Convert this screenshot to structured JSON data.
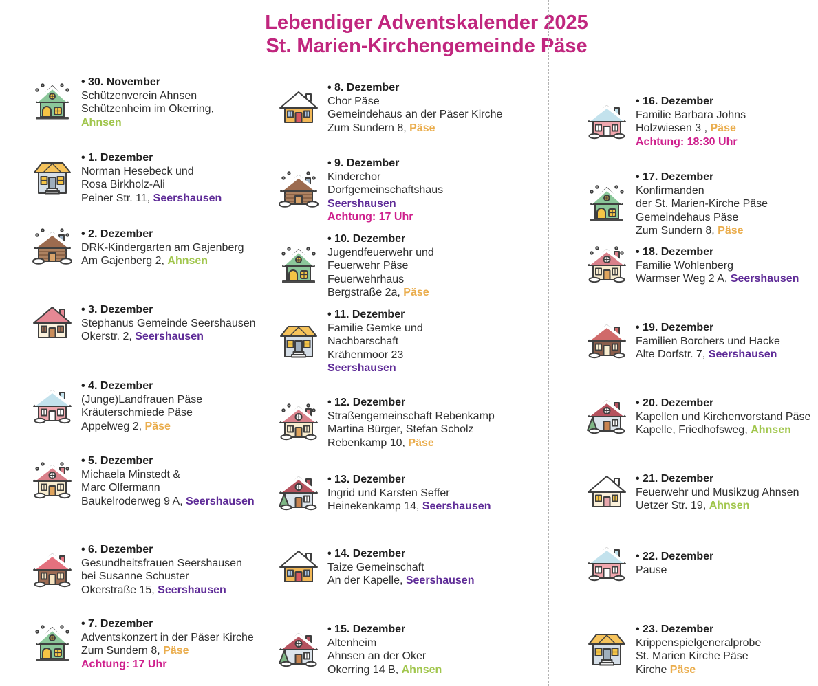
{
  "title": {
    "line1": "Lebendiger Adventskalender 2025",
    "line2": "St. Marien-Kirchengemeinde Päse"
  },
  "bullet": "•",
  "colors": {
    "title": "#C0267E",
    "ahnsen": "#A1C64D",
    "seershausen": "#5E2B97",
    "paese": "#EAAD4D",
    "achtung": "#CE1F8C",
    "text": "#2b2b2b"
  },
  "icon_types": {
    "green_gable": {
      "name": "green-snow-house-icon",
      "variant": "gable",
      "roof": "#8BC79A",
      "body": "#8BC79A",
      "door": "#F5C445",
      "win": "#F5C445",
      "snow": true,
      "flakes": true
    },
    "two_story": {
      "name": "two-story-house-icon",
      "variant": "wide",
      "roof": "#F6C35B",
      "body": "#D5DEE7",
      "door": "#9FAEBC",
      "win": "#F5C445"
    },
    "log_cabin": {
      "name": "log-cabin-icon",
      "variant": "cabin",
      "roof": "#9C6B4F",
      "body": "#AD8261",
      "door": "#D8A36A",
      "snow": true,
      "flakes": true
    },
    "cream_red": {
      "name": "cream-red-roof-house-icon",
      "variant": "side",
      "roof": "#E58894",
      "body": "#FBF1DB",
      "door": "#C98C59",
      "win": "#9C6B4F"
    },
    "pink_blue": {
      "name": "pink-blue-roof-house-icon",
      "variant": "side",
      "roof": "#C3E2ED",
      "body": "#F0A7AE",
      "door": "#FFFFFF",
      "win": "#FFFFFF",
      "snow": true
    },
    "cream_round": {
      "name": "cream-house-round-window-icon",
      "variant": "side",
      "roof": "#D9808A",
      "body": "#F8ECCF",
      "door": "#E0A45C",
      "win": "#F8ECCF",
      "snow": true,
      "flakes": true,
      "roundWin": true
    },
    "brown_pink": {
      "name": "brown-house-pink-roof-icon",
      "variant": "side",
      "roof": "#E4717E",
      "body": "#9C6B53",
      "door": "#F6E3C0",
      "win": "#F6E3C0",
      "snow": true
    },
    "orange_snow": {
      "name": "orange-house-icon",
      "variant": "side",
      "roof": "#FFFFFF",
      "body": "#F2B857",
      "door": "#D95660",
      "win": "#A8C6E8"
    },
    "gray_tree": {
      "name": "gray-house-tree-icon",
      "variant": "side",
      "roof": "#B5525E",
      "body": "#DCE4EB",
      "door": "#C8834F",
      "win": "#FFFFFF",
      "tree": true,
      "snow": true,
      "roundWin": true
    },
    "brown_red": {
      "name": "brown-house-red-roof-icon",
      "variant": "side",
      "roof": "#D06A6A",
      "body": "#8B5E4B",
      "door": "#F8ECCF",
      "win": "#F8ECCF",
      "snow": true
    },
    "cream_snow": {
      "name": "cream-snow-roof-house-icon",
      "variant": "side",
      "roof": "#FFFFFF",
      "body": "#FBF0D9",
      "door": "#E7A7AD",
      "win": "#F5C445"
    }
  },
  "columns": [
    {
      "entries": [
        {
          "date": "30. November",
          "icon": "green_gable",
          "lines": [
            [
              {
                "t": "Schützenverein Ahnsen"
              }
            ],
            [
              {
                "t": "Schützenheim im Okerring,"
              }
            ],
            [
              {
                "t": "Ahnsen",
                "s": "ahnsen"
              }
            ]
          ]
        },
        {
          "date": "1. Dezember",
          "icon": "two_story",
          "lines": [
            [
              {
                "t": "Norman Hesebeck und"
              }
            ],
            [
              {
                "t": "Rosa Birkholz-Ali"
              }
            ],
            [
              {
                "t": "Peiner Str. 11, "
              },
              {
                "t": "Seershausen",
                "s": "seershausen"
              }
            ]
          ]
        },
        {
          "date": "2. Dezember",
          "icon": "log_cabin",
          "lines": [
            [
              {
                "t": "DRK-Kindergarten am Gajenberg"
              }
            ],
            [
              {
                "t": "Am Gajenberg 2, "
              },
              {
                "t": "Ahnsen",
                "s": "ahnsen"
              }
            ]
          ]
        },
        {
          "date": "3. Dezember",
          "icon": "cream_red",
          "lines": [
            [
              {
                "t": "Stephanus Gemeinde Seershausen"
              }
            ],
            [
              {
                "t": "Okerstr. 2, "
              },
              {
                "t": "Seershausen",
                "s": "seershausen"
              }
            ]
          ]
        },
        {
          "date": "4. Dezember",
          "icon": "pink_blue",
          "lines": [
            [
              {
                "t": "(Junge)Landfrauen Päse"
              }
            ],
            [
              {
                "t": "Kräuterschmiede Päse"
              }
            ],
            [
              {
                "t": "Appelweg 2, "
              },
              {
                "t": "Päse",
                "s": "paese"
              }
            ]
          ]
        },
        {
          "date": "5. Dezember",
          "icon": "cream_round",
          "lines": [
            [
              {
                "t": "Michaela Minstedt &"
              }
            ],
            [
              {
                "t": "Marc Olfermann"
              }
            ],
            [
              {
                "t": "Baukelroderweg 9 A, "
              },
              {
                "t": "Seershausen",
                "s": "seershausen"
              }
            ]
          ]
        },
        {
          "date": "6. Dezember",
          "icon": "brown_pink",
          "lines": [
            [
              {
                "t": "Gesundheitsfrauen Seershausen"
              }
            ],
            [
              {
                "t": "bei Susanne Schuster"
              }
            ],
            [
              {
                "t": "Okerstraße 15, "
              },
              {
                "t": "Seershausen",
                "s": "seershausen"
              }
            ]
          ]
        },
        {
          "date": "7. Dezember",
          "icon": "green_gable",
          "lines": [
            [
              {
                "t": "Adventskonzert in der Päser Kirche"
              }
            ],
            [
              {
                "t": "Zum Sundern 8, "
              },
              {
                "t": "Päse",
                "s": "paese"
              }
            ],
            [
              {
                "t": "Achtung: 17 Uhr",
                "s": "achtung"
              }
            ]
          ]
        }
      ]
    },
    {
      "entries": [
        {
          "date": "8. Dezember",
          "icon": "orange_snow",
          "lines": [
            [
              {
                "t": "Chor Päse"
              }
            ],
            [
              {
                "t": "Gemeindehaus an der Päser Kirche"
              }
            ],
            [
              {
                "t": "Zum Sundern 8, "
              },
              {
                "t": "Päse",
                "s": "paese"
              }
            ]
          ]
        },
        {
          "date": "9. Dezember",
          "icon": "log_cabin",
          "lines": [
            [
              {
                "t": "Kinderchor"
              }
            ],
            [
              {
                "t": "Dorfgemeinschaftshaus"
              }
            ],
            [
              {
                "t": "Seershausen",
                "s": "seershausen"
              }
            ],
            [
              {
                "t": "Achtung: 17 Uhr",
                "s": "achtung"
              }
            ]
          ]
        },
        {
          "date": "10. Dezember",
          "icon": "green_gable",
          "lines": [
            [
              {
                "t": "Jugendfeuerwehr und"
              }
            ],
            [
              {
                "t": "Feuerwehr Päse"
              }
            ],
            [
              {
                "t": "Feuerwehrhaus"
              }
            ],
            [
              {
                "t": "Bergstraße 2a, "
              },
              {
                "t": "Päse",
                "s": "paese"
              }
            ]
          ]
        },
        {
          "date": "11. Dezember",
          "icon": "two_story",
          "lines": [
            [
              {
                "t": "Familie Gemke und"
              }
            ],
            [
              {
                "t": "Nachbarschaft"
              }
            ],
            [
              {
                "t": "Krähenmoor 23"
              }
            ],
            [
              {
                "t": "Seershausen",
                "s": "seershausen"
              }
            ]
          ]
        },
        {
          "date": "12. Dezember",
          "icon": "cream_round",
          "lines": [
            [
              {
                "t": "Straßengemeinschaft Rebenkamp"
              }
            ],
            [
              {
                "t": "Martina Bürger, Stefan Scholz"
              }
            ],
            [
              {
                "t": "Rebenkamp 10, "
              },
              {
                "t": "Päse",
                "s": "paese"
              }
            ]
          ]
        },
        {
          "date": "13. Dezember",
          "icon": "gray_tree",
          "lines": [
            [
              {
                "t": "Ingrid und Karsten Seffer"
              }
            ],
            [
              {
                "t": "Heinekenkamp 14, "
              },
              {
                "t": "Seershausen",
                "s": "seershausen"
              }
            ]
          ]
        },
        {
          "date": "14. Dezember",
          "icon": "orange_snow",
          "lines": [
            [
              {
                "t": "Taize Gemeinschaft"
              }
            ],
            [
              {
                "t": "An der Kapelle, "
              },
              {
                "t": "Seershausen",
                "s": "seershausen"
              }
            ]
          ]
        },
        {
          "date": "15. Dezember",
          "icon": "gray_tree",
          "lines": [
            [
              {
                "t": "Altenheim"
              }
            ],
            [
              {
                "t": "Ahnsen an der Oker"
              }
            ],
            [
              {
                "t": "Okerring 14 B, "
              },
              {
                "t": "Ahnsen",
                "s": "ahnsen"
              }
            ]
          ]
        }
      ]
    },
    {
      "entries": [
        {
          "date": "16. Dezember",
          "icon": "pink_blue",
          "lines": [
            [
              {
                "t": "Familie Barbara Johns"
              }
            ],
            [
              {
                "t": "Holzwiesen 3 , "
              },
              {
                "t": "Päse",
                "s": "paese"
              }
            ],
            [
              {
                "t": "Achtung: 18:30 Uhr",
                "s": "achtung"
              }
            ]
          ]
        },
        {
          "date": "17. Dezember",
          "icon": "green_gable",
          "lines": [
            [
              {
                "t": "Konfirmanden"
              }
            ],
            [
              {
                "t": "der St. Marien-Kirche Päse"
              }
            ],
            [
              {
                "t": "Gemeindehaus Päse"
              }
            ],
            [
              {
                "t": "Zum Sundern 8, "
              },
              {
                "t": "Päse",
                "s": "paese"
              }
            ]
          ]
        },
        {
          "date": "18. Dezember",
          "icon": "cream_round",
          "lines": [
            [
              {
                "t": "Familie Wohlenberg"
              }
            ],
            [
              {
                "t": "Warmser Weg 2 A, "
              },
              {
                "t": "Seershausen",
                "s": "seershausen"
              }
            ]
          ]
        },
        {
          "date": "19. Dezember",
          "icon": "brown_red",
          "lines": [
            [
              {
                "t": "Familien Borchers und Hacke"
              }
            ],
            [
              {
                "t": "Alte Dorfstr. 7, "
              },
              {
                "t": "Seershausen",
                "s": "seershausen"
              }
            ]
          ]
        },
        {
          "date": "20. Dezember",
          "icon": "gray_tree",
          "lines": [
            [
              {
                "t": "Kapellen und Kirchenvorstand Päse"
              }
            ],
            [
              {
                "t": "Kapelle, Friedhofsweg, "
              },
              {
                "t": "Ahnsen",
                "s": "ahnsen"
              }
            ]
          ]
        },
        {
          "date": "21. Dezember",
          "icon": "cream_snow",
          "lines": [
            [
              {
                "t": "Feuerwehr und Musikzug Ahnsen"
              }
            ],
            [
              {
                "t": "Uetzer Str. 19, "
              },
              {
                "t": "Ahnsen",
                "s": "ahnsen"
              }
            ]
          ]
        },
        {
          "date": "22. Dezember",
          "icon": "pink_blue",
          "lines": [
            [
              {
                "t": "Pause"
              }
            ]
          ]
        },
        {
          "date": "23. Dezember",
          "icon": "two_story",
          "lines": [
            [
              {
                "t": "Krippenspielgeneralprobe"
              }
            ],
            [
              {
                "t": "St. Marien Kirche Päse"
              }
            ],
            [
              {
                "t": "Kirche "
              },
              {
                "t": "Päse",
                "s": "paese"
              }
            ]
          ]
        }
      ]
    }
  ]
}
